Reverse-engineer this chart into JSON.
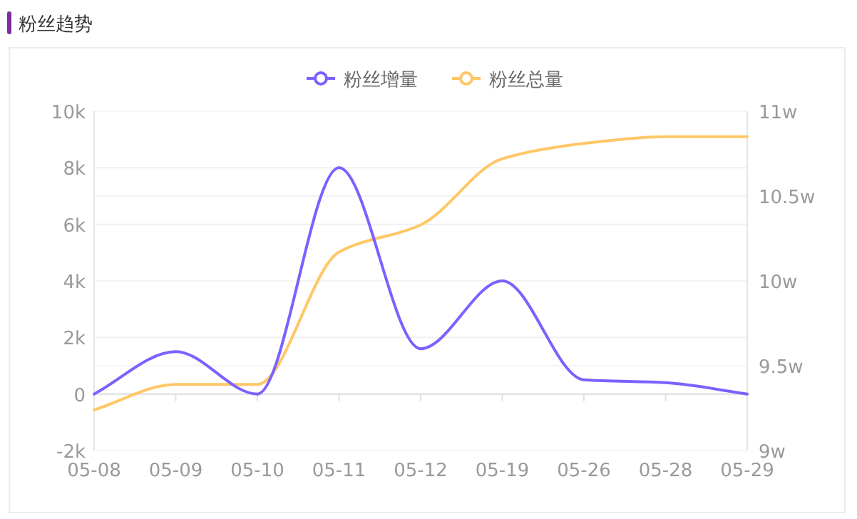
{
  "chart_data": {
    "type": "line",
    "title": "粉丝趋势",
    "categories": [
      "05-08",
      "05-09",
      "05-10",
      "05-11",
      "05-12",
      "05-19",
      "05-26",
      "05-28",
      "05-29"
    ],
    "series": [
      {
        "name": "粉丝增量",
        "color": "#7b61ff",
        "values": [
          0,
          1500,
          0,
          8000,
          1600,
          4000,
          500,
          400,
          0
        ]
      },
      {
        "name": "粉丝总量",
        "color": "#ffc766",
        "axis": "y2",
        "values": [
          9.24,
          9.39,
          9.39,
          10.17,
          10.33,
          10.72,
          10.81,
          10.85,
          10.85
        ]
      }
    ],
    "ylim": [
      -2000,
      10000
    ],
    "yticks": [
      {
        "value": -2000,
        "label": "-2k"
      },
      0,
      {
        "value": 2000,
        "label": "2k"
      },
      {
        "value": 4000,
        "label": "4k"
      },
      {
        "value": 6000,
        "label": "6k"
      },
      {
        "value": 8000,
        "label": "8k"
      },
      {
        "value": 10000,
        "label": "10k"
      }
    ],
    "y2lim": [
      9,
      11
    ],
    "y2ticks": [
      {
        "value": 9,
        "label": "9w"
      },
      {
        "value": 9.5,
        "label": "9.5w"
      },
      {
        "value": 10,
        "label": "10w"
      },
      {
        "value": 10.5,
        "label": "10.5w"
      },
      {
        "value": 11,
        "label": "11w"
      }
    ],
    "grid": true,
    "legend": "top"
  }
}
